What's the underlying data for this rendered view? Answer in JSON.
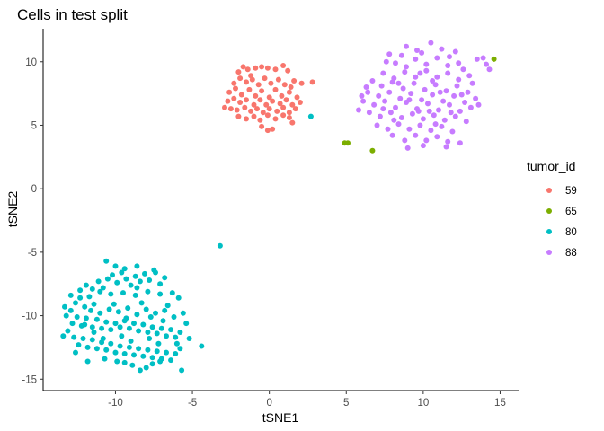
{
  "chart_data": {
    "type": "scatter",
    "title": "Cells in test split",
    "xlabel": "tSNE1",
    "ylabel": "tSNE2",
    "xlim": [
      -14.7,
      16.2
    ],
    "ylim": [
      -15.9,
      12.6
    ],
    "x_ticks": [
      -10,
      -5,
      0,
      5,
      10,
      15
    ],
    "y_ticks": [
      -15,
      -10,
      -5,
      0,
      5,
      10
    ],
    "grid": false,
    "legend": {
      "title": "tumor_id",
      "position": "right"
    },
    "series": [
      {
        "name": "59",
        "color": "#F8766D",
        "points": [
          [
            -2.0,
            9.2
          ],
          [
            -1.7,
            9.6
          ],
          [
            -1.4,
            9.4
          ],
          [
            -1.2,
            8.9
          ],
          [
            -0.9,
            9.5
          ],
          [
            -0.5,
            9.6
          ],
          [
            -0.1,
            9.5
          ],
          [
            0.4,
            9.4
          ],
          [
            0.9,
            9.7
          ],
          [
            1.2,
            9.3
          ],
          [
            1.6,
            8.5
          ],
          [
            -2.3,
            8.3
          ],
          [
            -1.9,
            8.7
          ],
          [
            -1.5,
            8.4
          ],
          [
            -1.1,
            8.6
          ],
          [
            -0.7,
            8.2
          ],
          [
            -0.3,
            8.7
          ],
          [
            0.1,
            8.3
          ],
          [
            0.6,
            8.6
          ],
          [
            1.0,
            8.2
          ],
          [
            1.4,
            8.0
          ],
          [
            2.1,
            8.3
          ],
          [
            -2.6,
            7.6
          ],
          [
            -2.2,
            7.9
          ],
          [
            -1.8,
            7.4
          ],
          [
            -1.3,
            7.8
          ],
          [
            -0.9,
            7.3
          ],
          [
            -0.5,
            7.7
          ],
          [
            0.0,
            7.2
          ],
          [
            0.4,
            7.8
          ],
          [
            0.8,
            7.3
          ],
          [
            1.3,
            7.6
          ],
          [
            1.8,
            7.2
          ],
          [
            -2.7,
            6.9
          ],
          [
            -2.3,
            7.1
          ],
          [
            -1.9,
            6.8
          ],
          [
            -1.5,
            7.0
          ],
          [
            -1.0,
            6.6
          ],
          [
            -0.6,
            7.0
          ],
          [
            -0.2,
            6.6
          ],
          [
            0.2,
            6.9
          ],
          [
            0.7,
            6.7
          ],
          [
            1.1,
            7.0
          ],
          [
            1.5,
            6.6
          ],
          [
            2.0,
            6.8
          ],
          [
            -2.5,
            6.3
          ],
          [
            -2.1,
            6.2
          ],
          [
            -1.6,
            6.4
          ],
          [
            -1.2,
            6.1
          ],
          [
            -0.8,
            6.3
          ],
          [
            -0.4,
            6.0
          ],
          [
            0.0,
            6.3
          ],
          [
            0.5,
            6.1
          ],
          [
            0.9,
            6.4
          ],
          [
            1.3,
            6.0
          ],
          [
            1.7,
            6.3
          ],
          [
            -2.0,
            5.7
          ],
          [
            -1.5,
            5.5
          ],
          [
            -1.0,
            5.7
          ],
          [
            -0.6,
            5.4
          ],
          [
            -0.1,
            5.8
          ],
          [
            0.4,
            5.5
          ],
          [
            0.9,
            5.8
          ],
          [
            1.3,
            5.6
          ],
          [
            -0.5,
            4.9
          ],
          [
            -0.1,
            4.6
          ],
          [
            0.2,
            4.7
          ],
          [
            2.8,
            8.4
          ],
          [
            -2.9,
            6.4
          ],
          [
            1.5,
            5.2
          ]
        ]
      },
      {
        "name": "65",
        "color": "#7CAE00",
        "points": [
          [
            4.9,
            3.6
          ],
          [
            5.1,
            3.6
          ],
          [
            6.7,
            3.0
          ],
          [
            14.6,
            10.2
          ]
        ]
      },
      {
        "name": "80",
        "color": "#00BFC4",
        "points": [
          [
            2.7,
            5.7
          ],
          [
            -3.2,
            -4.5
          ],
          [
            -12.9,
            -8.4
          ],
          [
            -12.6,
            -9.0
          ],
          [
            -12.3,
            -8.6
          ],
          [
            -12.0,
            -9.3
          ],
          [
            -11.7,
            -8.5
          ],
          [
            -11.4,
            -9.1
          ],
          [
            -11.9,
            -7.6
          ],
          [
            -11.5,
            -7.9
          ],
          [
            -11.1,
            -7.3
          ],
          [
            -10.8,
            -7.8
          ],
          [
            -10.5,
            -7.1
          ],
          [
            -10.2,
            -6.8
          ],
          [
            -9.9,
            -7.4
          ],
          [
            -9.6,
            -6.6
          ],
          [
            -9.3,
            -7.1
          ],
          [
            -9.0,
            -7.6
          ],
          [
            -8.7,
            -6.9
          ],
          [
            -8.4,
            -7.3
          ],
          [
            -8.1,
            -6.7
          ],
          [
            -7.8,
            -7.2
          ],
          [
            -7.4,
            -6.6
          ],
          [
            -7.1,
            -7.5
          ],
          [
            -6.8,
            -7.0
          ],
          [
            -10.6,
            -5.7
          ],
          [
            -10.0,
            -6.1
          ],
          [
            -9.4,
            -6.3
          ],
          [
            -8.6,
            -6.1
          ],
          [
            -7.5,
            -6.4
          ],
          [
            -13.2,
            -10.0
          ],
          [
            -12.8,
            -10.6
          ],
          [
            -12.5,
            -10.1
          ],
          [
            -12.2,
            -10.8
          ],
          [
            -11.9,
            -10.2
          ],
          [
            -11.5,
            -10.9
          ],
          [
            -11.2,
            -10.3
          ],
          [
            -10.9,
            -11.0
          ],
          [
            -10.6,
            -10.5
          ],
          [
            -10.3,
            -11.1
          ],
          [
            -10.0,
            -10.6
          ],
          [
            -9.7,
            -10.9
          ],
          [
            -9.4,
            -10.4
          ],
          [
            -9.1,
            -11.0
          ],
          [
            -8.8,
            -10.6
          ],
          [
            -8.5,
            -11.2
          ],
          [
            -8.2,
            -10.7
          ],
          [
            -7.9,
            -11.3
          ],
          [
            -7.6,
            -10.9
          ],
          [
            -7.3,
            -11.4
          ],
          [
            -7.0,
            -11.0
          ],
          [
            -6.7,
            -11.6
          ],
          [
            -6.4,
            -11.1
          ],
          [
            -6.1,
            -11.7
          ],
          [
            -5.8,
            -11.3
          ],
          [
            -11.6,
            -9.6
          ],
          [
            -11.0,
            -9.8
          ],
          [
            -10.4,
            -9.5
          ],
          [
            -9.8,
            -9.7
          ],
          [
            -9.2,
            -9.4
          ],
          [
            -8.6,
            -9.9
          ],
          [
            -8.0,
            -9.5
          ],
          [
            -7.4,
            -9.8
          ],
          [
            -6.8,
            -9.6
          ],
          [
            -6.2,
            -10.1
          ],
          [
            -5.6,
            -9.8
          ],
          [
            -12.7,
            -11.7
          ],
          [
            -12.4,
            -12.3
          ],
          [
            -12.1,
            -11.8
          ],
          [
            -11.8,
            -12.5
          ],
          [
            -11.5,
            -11.9
          ],
          [
            -11.2,
            -12.6
          ],
          [
            -10.9,
            -12.1
          ],
          [
            -10.6,
            -12.7
          ],
          [
            -10.3,
            -12.2
          ],
          [
            -10.0,
            -12.9
          ],
          [
            -9.7,
            -12.4
          ],
          [
            -9.4,
            -13.0
          ],
          [
            -9.1,
            -12.5
          ],
          [
            -8.8,
            -13.1
          ],
          [
            -8.5,
            -12.6
          ],
          [
            -8.2,
            -13.2
          ],
          [
            -7.9,
            -12.7
          ],
          [
            -7.6,
            -13.3
          ],
          [
            -7.3,
            -12.8
          ],
          [
            -7.0,
            -13.4
          ],
          [
            -6.7,
            -12.9
          ],
          [
            -6.4,
            -13.5
          ],
          [
            -6.1,
            -13.0
          ],
          [
            -5.8,
            -12.6
          ],
          [
            -9.9,
            -13.6
          ],
          [
            -9.4,
            -13.7
          ],
          [
            -8.9,
            -13.9
          ],
          [
            -8.4,
            -14.3
          ],
          [
            -8.0,
            -14.1
          ],
          [
            -7.6,
            -13.8
          ],
          [
            -7.1,
            -13.6
          ],
          [
            -5.7,
            -14.3
          ],
          [
            -4.4,
            -12.4
          ],
          [
            -13.3,
            -9.3
          ],
          [
            -12.9,
            -9.6
          ],
          [
            -12.3,
            -8.0
          ],
          [
            -11.0,
            -8.1
          ],
          [
            -10.3,
            -8.3
          ],
          [
            -9.5,
            -8.2
          ],
          [
            -8.7,
            -8.4
          ],
          [
            -7.9,
            -8.1
          ],
          [
            -7.1,
            -8.3
          ],
          [
            -6.3,
            -8.2
          ],
          [
            -5.9,
            -8.6
          ],
          [
            -13.1,
            -11.2
          ],
          [
            -11.4,
            -11.3
          ],
          [
            -9.6,
            -11.6
          ],
          [
            -7.8,
            -11.8
          ],
          [
            -6.0,
            -12.2
          ],
          [
            -11.8,
            -13.6
          ],
          [
            -10.7,
            -13.4
          ],
          [
            -5.2,
            -11.8
          ],
          [
            -5.4,
            -10.6
          ],
          [
            -12.0,
            -10.7
          ],
          [
            -10.1,
            -9.1
          ],
          [
            -8.3,
            -9.0
          ],
          [
            -6.6,
            -9.2
          ],
          [
            -9.0,
            -12.0
          ],
          [
            -7.2,
            -12.2
          ],
          [
            -13.4,
            -11.6
          ],
          [
            -12.6,
            -12.9
          ],
          [
            -8.6,
            -7.8
          ],
          [
            -6.9,
            -10.4
          ],
          [
            -10.8,
            -11.8
          ],
          [
            -9.3,
            -10.2
          ],
          [
            -7.7,
            -10.1
          ]
        ]
      },
      {
        "name": "88",
        "color": "#C77CFF",
        "points": [
          [
            7.8,
            10.6
          ],
          [
            8.9,
            11.2
          ],
          [
            9.6,
            10.9
          ],
          [
            10.5,
            11.5
          ],
          [
            11.2,
            11.0
          ],
          [
            12.1,
            10.8
          ],
          [
            8.2,
            9.9
          ],
          [
            8.9,
            9.6
          ],
          [
            9.5,
            10.2
          ],
          [
            10.2,
            9.8
          ],
          [
            10.9,
            10.3
          ],
          [
            11.6,
            9.7
          ],
          [
            12.3,
            9.9
          ],
          [
            7.4,
            9.1
          ],
          [
            8.1,
            8.7
          ],
          [
            8.8,
            9.2
          ],
          [
            9.5,
            8.8
          ],
          [
            10.2,
            9.3
          ],
          [
            10.9,
            8.8
          ],
          [
            11.6,
            9.1
          ],
          [
            12.3,
            8.6
          ],
          [
            13.0,
            8.9
          ],
          [
            6.7,
            8.5
          ],
          [
            7.3,
            8.1
          ],
          [
            8.0,
            8.4
          ],
          [
            8.7,
            7.9
          ],
          [
            9.4,
            8.3
          ],
          [
            10.1,
            7.8
          ],
          [
            10.8,
            8.2
          ],
          [
            11.5,
            7.7
          ],
          [
            12.2,
            8.1
          ],
          [
            12.9,
            7.6
          ],
          [
            6.4,
            7.6
          ],
          [
            7.1,
            7.3
          ],
          [
            7.8,
            7.6
          ],
          [
            8.5,
            7.1
          ],
          [
            9.2,
            7.5
          ],
          [
            9.9,
            7.0
          ],
          [
            10.6,
            7.4
          ],
          [
            11.3,
            6.9
          ],
          [
            12.0,
            7.3
          ],
          [
            12.7,
            6.8
          ],
          [
            13.4,
            7.1
          ],
          [
            6.1,
            6.9
          ],
          [
            6.8,
            6.6
          ],
          [
            7.5,
            6.9
          ],
          [
            8.2,
            6.4
          ],
          [
            8.9,
            6.8
          ],
          [
            9.6,
            6.3
          ],
          [
            10.3,
            6.7
          ],
          [
            11.0,
            6.2
          ],
          [
            11.7,
            6.6
          ],
          [
            12.4,
            6.1
          ],
          [
            13.1,
            6.4
          ],
          [
            6.5,
            6.0
          ],
          [
            7.2,
            5.7
          ],
          [
            7.9,
            6.0
          ],
          [
            8.6,
            5.6
          ],
          [
            9.3,
            5.9
          ],
          [
            10.0,
            5.5
          ],
          [
            10.7,
            5.8
          ],
          [
            11.4,
            5.4
          ],
          [
            12.1,
            5.7
          ],
          [
            12.8,
            5.3
          ],
          [
            7.0,
            5.0
          ],
          [
            7.7,
            4.7
          ],
          [
            8.4,
            5.1
          ],
          [
            9.1,
            4.7
          ],
          [
            9.8,
            5.0
          ],
          [
            10.5,
            4.6
          ],
          [
            11.2,
            4.9
          ],
          [
            11.9,
            4.5
          ],
          [
            8.0,
            4.2
          ],
          [
            8.8,
            3.8
          ],
          [
            9.5,
            4.2
          ],
          [
            10.2,
            3.8
          ],
          [
            10.9,
            4.1
          ],
          [
            11.6,
            3.7
          ],
          [
            9.0,
            3.2
          ],
          [
            10.0,
            3.4
          ],
          [
            11.5,
            3.3
          ],
          [
            12.4,
            3.6
          ],
          [
            6.0,
            7.3
          ],
          [
            5.8,
            6.2
          ],
          [
            13.6,
            6.6
          ],
          [
            13.2,
            8.3
          ],
          [
            13.9,
            10.3
          ],
          [
            14.1,
            9.8
          ],
          [
            14.3,
            9.4
          ],
          [
            13.5,
            10.2
          ],
          [
            7.6,
            10.0
          ],
          [
            8.6,
            10.5
          ],
          [
            9.9,
            10.7
          ],
          [
            11.7,
            10.4
          ],
          [
            6.3,
            8.0
          ],
          [
            12.6,
            9.4
          ],
          [
            9.8,
            9.1
          ],
          [
            10.6,
            8.5
          ],
          [
            8.4,
            8.3
          ],
          [
            11.1,
            7.6
          ],
          [
            9.7,
            6.1
          ],
          [
            8.1,
            5.4
          ],
          [
            10.8,
            5.1
          ],
          [
            11.8,
            6.0
          ],
          [
            7.4,
            6.3
          ],
          [
            12.5,
            7.4
          ],
          [
            9.1,
            7.0
          ],
          [
            10.4,
            6.1
          ]
        ]
      }
    ]
  }
}
